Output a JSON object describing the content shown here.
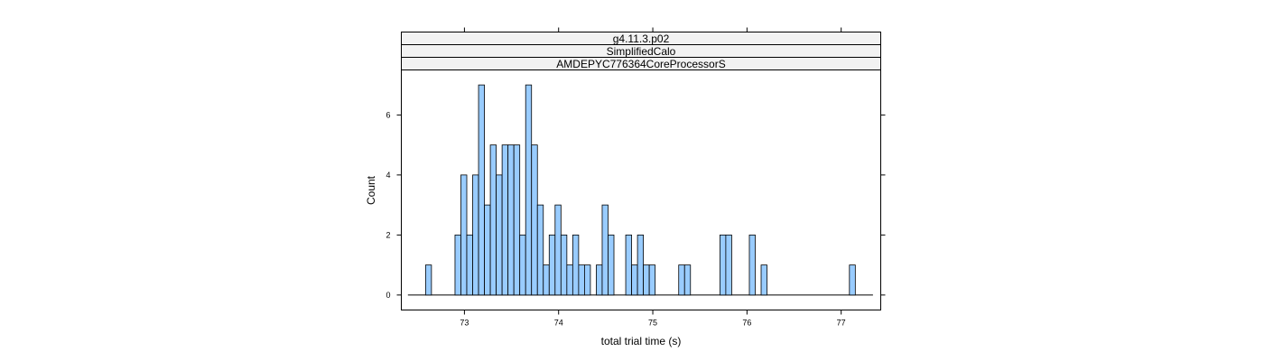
{
  "chart_data": {
    "type": "bar",
    "panel": {
      "strips": [
        "g4.11.3.p02",
        "SimplifiedCalo",
        "AMDEPYC776364CoreProcessorS"
      ]
    },
    "xlabel": "total trial time (s)",
    "ylabel": "Count",
    "xlim": [
      72.33,
      77.42
    ],
    "ylim": [
      -0.5,
      7.5
    ],
    "x_ticks": [
      73,
      74,
      75,
      76,
      77
    ],
    "y_ticks": [
      0,
      2,
      4,
      6
    ],
    "bin_start": 72.4,
    "bin_width": 0.0625,
    "counts": [
      0,
      0,
      0,
      1,
      0,
      0,
      0,
      0,
      2,
      4,
      2,
      4,
      7,
      3,
      5,
      4,
      5,
      5,
      5,
      2,
      7,
      5,
      3,
      1,
      2,
      3,
      2,
      1,
      2,
      1,
      1,
      0,
      1,
      3,
      2,
      0,
      0,
      2,
      1,
      2,
      1,
      1,
      0,
      0,
      0,
      0,
      1,
      1,
      0,
      0,
      0,
      0,
      0,
      2,
      2,
      0,
      0,
      0,
      2,
      0,
      1,
      0,
      0,
      0,
      0,
      0,
      0,
      0,
      0,
      0,
      0,
      0,
      0,
      0,
      0,
      1,
      0,
      0,
      0
    ]
  },
  "colors": {
    "bar_fill": "#99CCFF",
    "bar_stroke": "#000000",
    "strip_fill": "#F2F2F2",
    "frame": "#000000"
  }
}
